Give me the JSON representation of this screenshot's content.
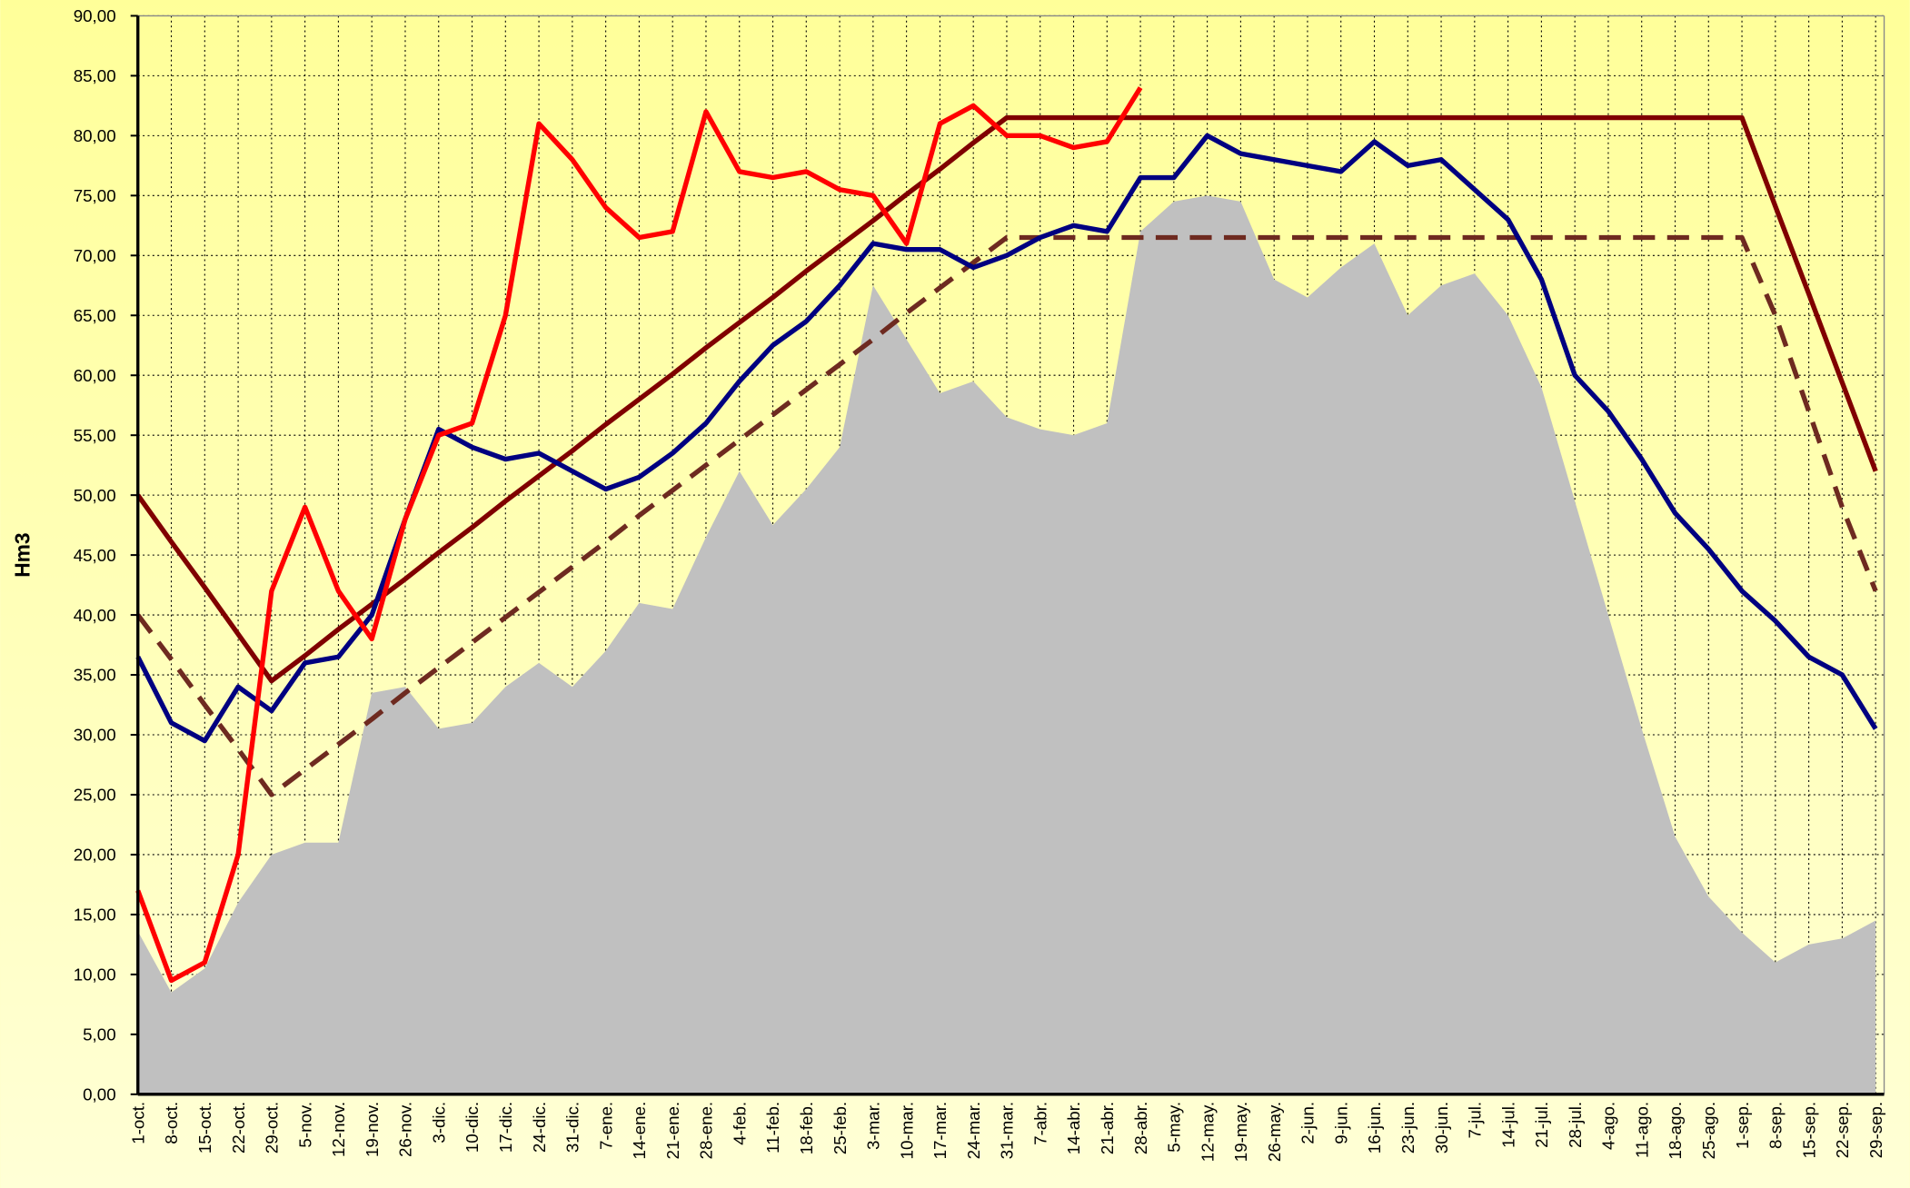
{
  "chart_data": {
    "type": "line",
    "y_label": "Hm3",
    "categories": [
      "1-oct.",
      "8-oct.",
      "15-oct.",
      "22-oct.",
      "29-oct.",
      "5-nov.",
      "12-nov.",
      "19-nov.",
      "26-nov.",
      "3-dic.",
      "10-dic.",
      "17-dic.",
      "24-dic.",
      "31-dic.",
      "7-ene.",
      "14-ene.",
      "21-ene.",
      "28-ene.",
      "4-feb.",
      "11-feb.",
      "18-feb.",
      "25-feb.",
      "3-mar.",
      "10-mar.",
      "17-mar.",
      "24-mar.",
      "31-mar.",
      "7-abr.",
      "14-abr.",
      "21-abr.",
      "28-abr.",
      "5-may.",
      "12-may.",
      "19-may.",
      "26-may.",
      "2-jun.",
      "9-jun.",
      "16-jun.",
      "23-jun.",
      "30-jun.",
      "7-jul.",
      "14-jul.",
      "21-jul.",
      "28-jul.",
      "4-ago.",
      "11-ago.",
      "18-ago.",
      "25-ago.",
      "1-sep.",
      "8-sep.",
      "15-sep.",
      "22-sep.",
      "29-sep."
    ],
    "ylim": [
      0,
      90
    ],
    "yticks": [
      {
        "value": 0,
        "label": "0,00"
      },
      {
        "value": 5,
        "label": "5,00"
      },
      {
        "value": 10,
        "label": "10,00"
      },
      {
        "value": 15,
        "label": "15,00"
      },
      {
        "value": 20,
        "label": "20,00"
      },
      {
        "value": 25,
        "label": "25,00"
      },
      {
        "value": 30,
        "label": "30,00"
      },
      {
        "value": 35,
        "label": "35,00"
      },
      {
        "value": 40,
        "label": "40,00"
      },
      {
        "value": 45,
        "label": "45,00"
      },
      {
        "value": 50,
        "label": "50,00"
      },
      {
        "value": 55,
        "label": "55,00"
      },
      {
        "value": 60,
        "label": "60,00"
      },
      {
        "value": 65,
        "label": "65,00"
      },
      {
        "value": 70,
        "label": "70,00"
      },
      {
        "value": 75,
        "label": "75,00"
      },
      {
        "value": 80,
        "label": "80,00"
      },
      {
        "value": 85,
        "label": "85,00"
      },
      {
        "value": 90,
        "label": "90,00"
      }
    ],
    "grid": true,
    "series": [
      {
        "style": "area",
        "color": "#c0c0c0",
        "values": [
          13.6,
          8.5,
          10.5,
          16,
          20,
          21,
          21,
          33.5,
          34,
          30.5,
          31,
          34,
          36,
          34,
          37,
          41,
          40.5,
          46.5,
          52,
          47.5,
          50.5,
          54,
          67.5,
          63,
          58.5,
          59.5,
          56.5,
          55.5,
          55,
          56,
          72,
          74.5,
          75,
          74.5,
          68,
          66.5,
          69,
          71,
          65,
          67.5,
          68.5,
          65,
          59,
          49.5,
          40,
          30.5,
          21.5,
          16.5,
          13.5,
          11,
          12.5,
          13,
          14.5
        ]
      },
      {
        "style": "solid",
        "color": "#800000",
        "values": [
          50,
          46.1,
          42.3,
          38.4,
          34.5,
          36.6,
          38.8,
          40.9,
          43,
          45.2,
          47.3,
          49.5,
          51.6,
          53.7,
          55.9,
          58,
          60.1,
          62.3,
          64.4,
          66.5,
          68.7,
          70.8,
          72.9,
          75.1,
          77.2,
          79.4,
          81.5,
          81.5,
          81.5,
          81.5,
          81.5,
          81.5,
          81.5,
          81.5,
          81.5,
          81.5,
          81.5,
          81.5,
          81.5,
          81.5,
          81.5,
          81.5,
          81.5,
          81.5,
          81.5,
          81.5,
          81.5,
          81.5,
          81.5,
          74.1,
          66.8,
          59.4,
          52
        ]
      },
      {
        "style": "dashed",
        "color": "#6e2a20",
        "values": [
          40,
          36.3,
          32.5,
          28.8,
          25,
          27.1,
          29.2,
          31.3,
          33.5,
          35.6,
          37.7,
          39.8,
          41.9,
          44,
          46.1,
          48.3,
          50.4,
          52.5,
          54.6,
          56.7,
          58.8,
          60.9,
          63,
          65.2,
          67.3,
          69.4,
          71.5,
          71.5,
          71.5,
          71.5,
          71.5,
          71.5,
          71.5,
          71.5,
          71.5,
          71.5,
          71.5,
          71.5,
          71.5,
          71.5,
          71.5,
          71.5,
          71.5,
          71.5,
          71.5,
          71.5,
          71.5,
          71.5,
          71.5,
          65,
          57,
          49,
          42
        ]
      },
      {
        "style": "solid",
        "color": "#000080",
        "values": [
          36.5,
          31,
          29.5,
          34,
          32,
          36,
          36.5,
          40,
          48,
          55.5,
          54,
          53,
          53.5,
          52,
          50.5,
          51.5,
          53.5,
          56,
          59.5,
          62.5,
          64.5,
          67.5,
          71,
          70.5,
          70.5,
          69,
          70,
          71.5,
          72.5,
          72,
          76.5,
          76.5,
          80,
          78.5,
          78,
          77.5,
          77,
          79.5,
          77.5,
          78,
          75.5,
          73,
          68,
          60,
          57,
          53,
          48.5,
          45.5,
          42,
          39.5,
          36.5,
          35,
          30.5
        ]
      },
      {
        "style": "solid",
        "color": "#ff0000",
        "values": [
          17,
          9.5,
          11,
          20,
          42,
          49,
          42,
          38,
          48,
          55,
          56,
          65,
          81,
          78,
          74,
          71.5,
          72,
          82,
          77,
          76.5,
          77,
          75.5,
          75,
          71,
          81,
          82.5,
          80,
          80,
          79,
          79.5,
          84,
          null,
          null,
          null,
          null,
          null,
          null,
          null,
          null,
          null,
          null,
          null,
          null,
          null,
          null,
          null,
          null,
          null,
          null,
          null,
          null,
          null,
          null
        ]
      }
    ]
  }
}
